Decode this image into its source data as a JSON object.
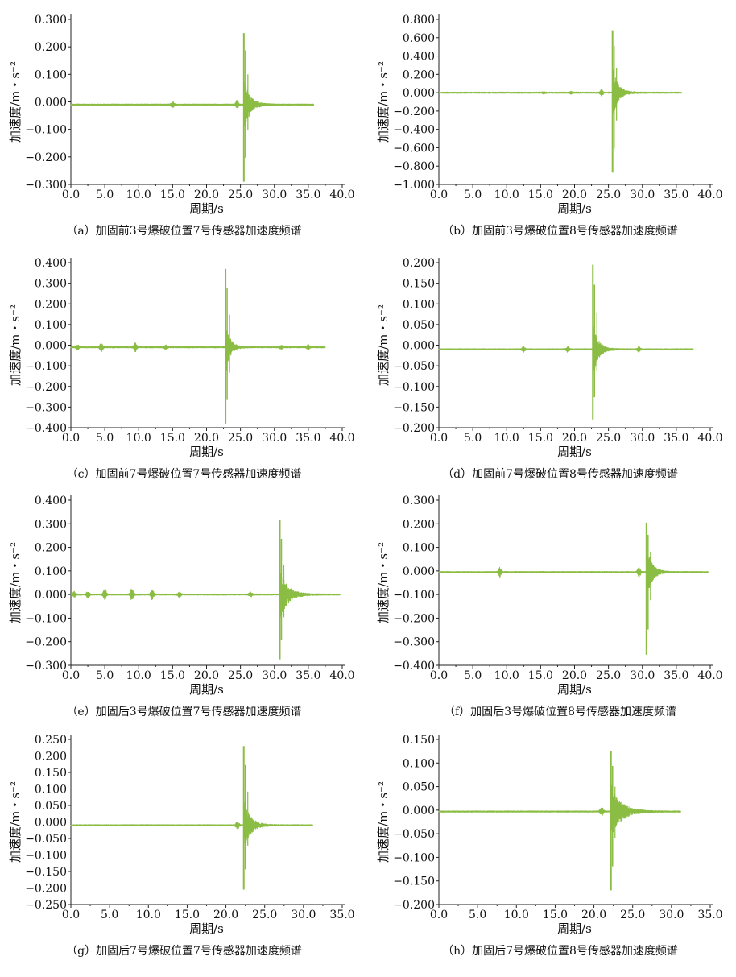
{
  "chart_data": [
    {
      "id": "a",
      "type": "line",
      "caption": "（a）加固前3号爆破位置7号传感器加速度频谱",
      "xlabel": "周期/s",
      "ylabel": "加速度/m・s⁻²",
      "xlim": [
        0,
        40
      ],
      "xticks": [
        "0.0",
        "5.0",
        "10.0",
        "15.0",
        "20.0",
        "25.0",
        "30.0",
        "35.0",
        "40.0"
      ],
      "ylim": [
        -0.3,
        0.3
      ],
      "yticks": [
        "-0.300",
        "-0.200",
        "-0.100",
        "0.000",
        "0.100",
        "0.200",
        "0.300"
      ],
      "series": [
        {
          "baseline": -0.01,
          "x_end": 35.8,
          "peak_x": 25.5,
          "peak_max": 0.25,
          "peak_min": -0.29,
          "decay": 1.4,
          "bursts": [
            [
              15.0,
              0.01
            ],
            [
              24.5,
              0.015
            ]
          ]
        }
      ]
    },
    {
      "id": "b",
      "type": "line",
      "caption": "（b）加固前3号爆破位置8号传感器加速度频谱",
      "xlabel": "周期/s",
      "ylabel": "加速度/m・s⁻²",
      "xlim": [
        0,
        40
      ],
      "xticks": [
        "0.0",
        "5.0",
        "10.0",
        "15.0",
        "20.0",
        "25.0",
        "30.0",
        "35.0",
        "40.0"
      ],
      "ylim": [
        -1.0,
        0.8
      ],
      "yticks": [
        "-1.000",
        "-0.800",
        "-0.600",
        "-0.400",
        "-0.200",
        "0.000",
        "0.200",
        "0.400",
        "0.600",
        "0.800"
      ],
      "series": [
        {
          "baseline": 0.0,
          "x_end": 35.8,
          "peak_x": 25.6,
          "peak_max": 0.68,
          "peak_min": -0.87,
          "decay": 1.2,
          "bursts": [
            [
              15.5,
              0.01
            ],
            [
              19.5,
              0.01
            ],
            [
              24.0,
              0.03
            ]
          ]
        }
      ]
    },
    {
      "id": "c",
      "type": "line",
      "caption": "（c）加固前7号爆破位置7号传感器加速度频谱",
      "xlabel": "周期/s",
      "ylabel": "加速度/m・s⁻²",
      "xlim": [
        0,
        40
      ],
      "xticks": [
        "0.0",
        "5.0",
        "10.0",
        "15.0",
        "20.0",
        "25.0",
        "30.0",
        "35.0",
        "40.0"
      ],
      "ylim": [
        -0.4,
        0.4
      ],
      "yticks": [
        "-0.400",
        "-0.300",
        "-0.200",
        "-0.100",
        "0.000",
        "0.100",
        "0.200",
        "0.300",
        "0.400"
      ],
      "series": [
        {
          "baseline": -0.01,
          "x_end": 37.5,
          "peak_x": 22.8,
          "peak_max": 0.37,
          "peak_min": -0.38,
          "decay": 1.0,
          "bursts": [
            [
              1.0,
              0.01
            ],
            [
              4.5,
              0.02
            ],
            [
              9.5,
              0.02
            ],
            [
              14.0,
              0.01
            ],
            [
              31.0,
              0.01
            ],
            [
              35.0,
              0.01
            ]
          ]
        }
      ]
    },
    {
      "id": "d",
      "type": "line",
      "caption": "（d）加固前7号爆破位置8号传感器加速度频谱",
      "xlabel": "周期/s",
      "ylabel": "加速度/m・s⁻²",
      "xlim": [
        0,
        40
      ],
      "xticks": [
        "0.0",
        "5.0",
        "10.0",
        "15.0",
        "20.0",
        "25.0",
        "30.0",
        "35.0",
        "40.0"
      ],
      "ylim": [
        -0.2,
        0.2
      ],
      "yticks": [
        "-0.200",
        "-0.150",
        "-0.100",
        "-0.050",
        "0.000",
        "0.050",
        "0.100",
        "0.150",
        "0.200"
      ],
      "series": [
        {
          "baseline": -0.01,
          "x_end": 37.5,
          "peak_x": 22.7,
          "peak_max": 0.195,
          "peak_min": -0.18,
          "decay": 1.2,
          "bursts": [
            [
              12.5,
              0.006
            ],
            [
              19.0,
              0.006
            ],
            [
              29.5,
              0.006
            ]
          ]
        }
      ]
    },
    {
      "id": "e",
      "type": "line",
      "caption": "（e）加固后3号爆破位置7号传感器加速度频谱",
      "xlabel": "周期/s",
      "ylabel": "加速度/m・s⁻²",
      "xlim": [
        0,
        40
      ],
      "xticks": [
        "0.0",
        "5.0",
        "10.0",
        "15.0",
        "20.0",
        "25.0",
        "30.0",
        "35.0",
        "40.0"
      ],
      "ylim": [
        -0.3,
        0.4
      ],
      "yticks": [
        "-0.300",
        "-0.200",
        "-0.100",
        "0.000",
        "0.100",
        "0.200",
        "0.300",
        "0.400"
      ],
      "series": [
        {
          "baseline": 0.0,
          "x_end": 39.7,
          "peak_x": 30.8,
          "peak_max": 0.315,
          "peak_min": -0.275,
          "decay": 1.8,
          "bursts": [
            [
              0.5,
              0.012
            ],
            [
              2.5,
              0.015
            ],
            [
              5.0,
              0.025
            ],
            [
              9.0,
              0.03
            ],
            [
              12.0,
              0.02
            ],
            [
              16.0,
              0.01
            ],
            [
              26.5,
              0.01
            ]
          ]
        }
      ]
    },
    {
      "id": "f",
      "type": "line",
      "caption": "（f）加固后3号爆破位置8号传感器加速度频谱",
      "xlabel": "周期/s",
      "ylabel": "加速度/m・s⁻²",
      "xlim": [
        0,
        40
      ],
      "xticks": [
        "0.0",
        "5.0",
        "10.0",
        "15.0",
        "20.0",
        "25.0",
        "30.0",
        "35.0",
        "40.0"
      ],
      "ylim": [
        -0.4,
        0.3
      ],
      "yticks": [
        "-0.400",
        "-0.300",
        "-0.200",
        "-0.100",
        "0.000",
        "0.100",
        "0.200",
        "0.300"
      ],
      "series": [
        {
          "baseline": -0.005,
          "x_end": 39.7,
          "peak_x": 30.6,
          "peak_max": 0.205,
          "peak_min": -0.355,
          "decay": 1.2,
          "bursts": [
            [
              9.0,
              0.02
            ],
            [
              29.5,
              0.02
            ]
          ]
        }
      ]
    },
    {
      "id": "g",
      "type": "line",
      "caption": "（g）加固后7号爆破位置7号传感器加速度频谱",
      "xlabel": "周期/s",
      "ylabel": "加速度/m・s⁻²",
      "xlim": [
        0,
        35
      ],
      "xticks": [
        "0.0",
        "5.0",
        "10.0",
        "15.0",
        "20.0",
        "25.0",
        "30.0",
        "35.0"
      ],
      "ylim": [
        -0.25,
        0.25
      ],
      "yticks": [
        "-0.250",
        "-0.200",
        "-0.150",
        "-0.100",
        "-0.050",
        "0.000",
        "0.050",
        "0.100",
        "0.150",
        "0.200",
        "0.250"
      ],
      "series": [
        {
          "baseline": -0.01,
          "x_end": 31.2,
          "peak_x": 22.3,
          "peak_max": 0.23,
          "peak_min": -0.205,
          "decay": 1.3,
          "bursts": [
            [
              21.5,
              0.01
            ]
          ]
        }
      ]
    },
    {
      "id": "h",
      "type": "line",
      "caption": "（h）加固后7号爆破位置8号传感器加速度频谱",
      "xlabel": "周期/s",
      "ylabel": "加速度/m・s⁻²",
      "xlim": [
        0,
        35
      ],
      "xticks": [
        "0.0",
        "5.0",
        "10.0",
        "15.0",
        "20.0",
        "25.0",
        "30.0",
        "35.0"
      ],
      "ylim": [
        -0.2,
        0.15
      ],
      "yticks": [
        "-0.200",
        "-0.150",
        "-0.100",
        "-0.050",
        "0.000",
        "0.050",
        "0.100",
        "0.150"
      ],
      "series": [
        {
          "baseline": -0.003,
          "x_end": 31.2,
          "peak_x": 22.2,
          "peak_max": 0.125,
          "peak_min": -0.17,
          "decay": 2.0,
          "bursts": [
            [
              21.0,
              0.008
            ]
          ]
        }
      ]
    }
  ],
  "colors": {
    "signal": "#8bbd44",
    "axis": "#222222"
  }
}
